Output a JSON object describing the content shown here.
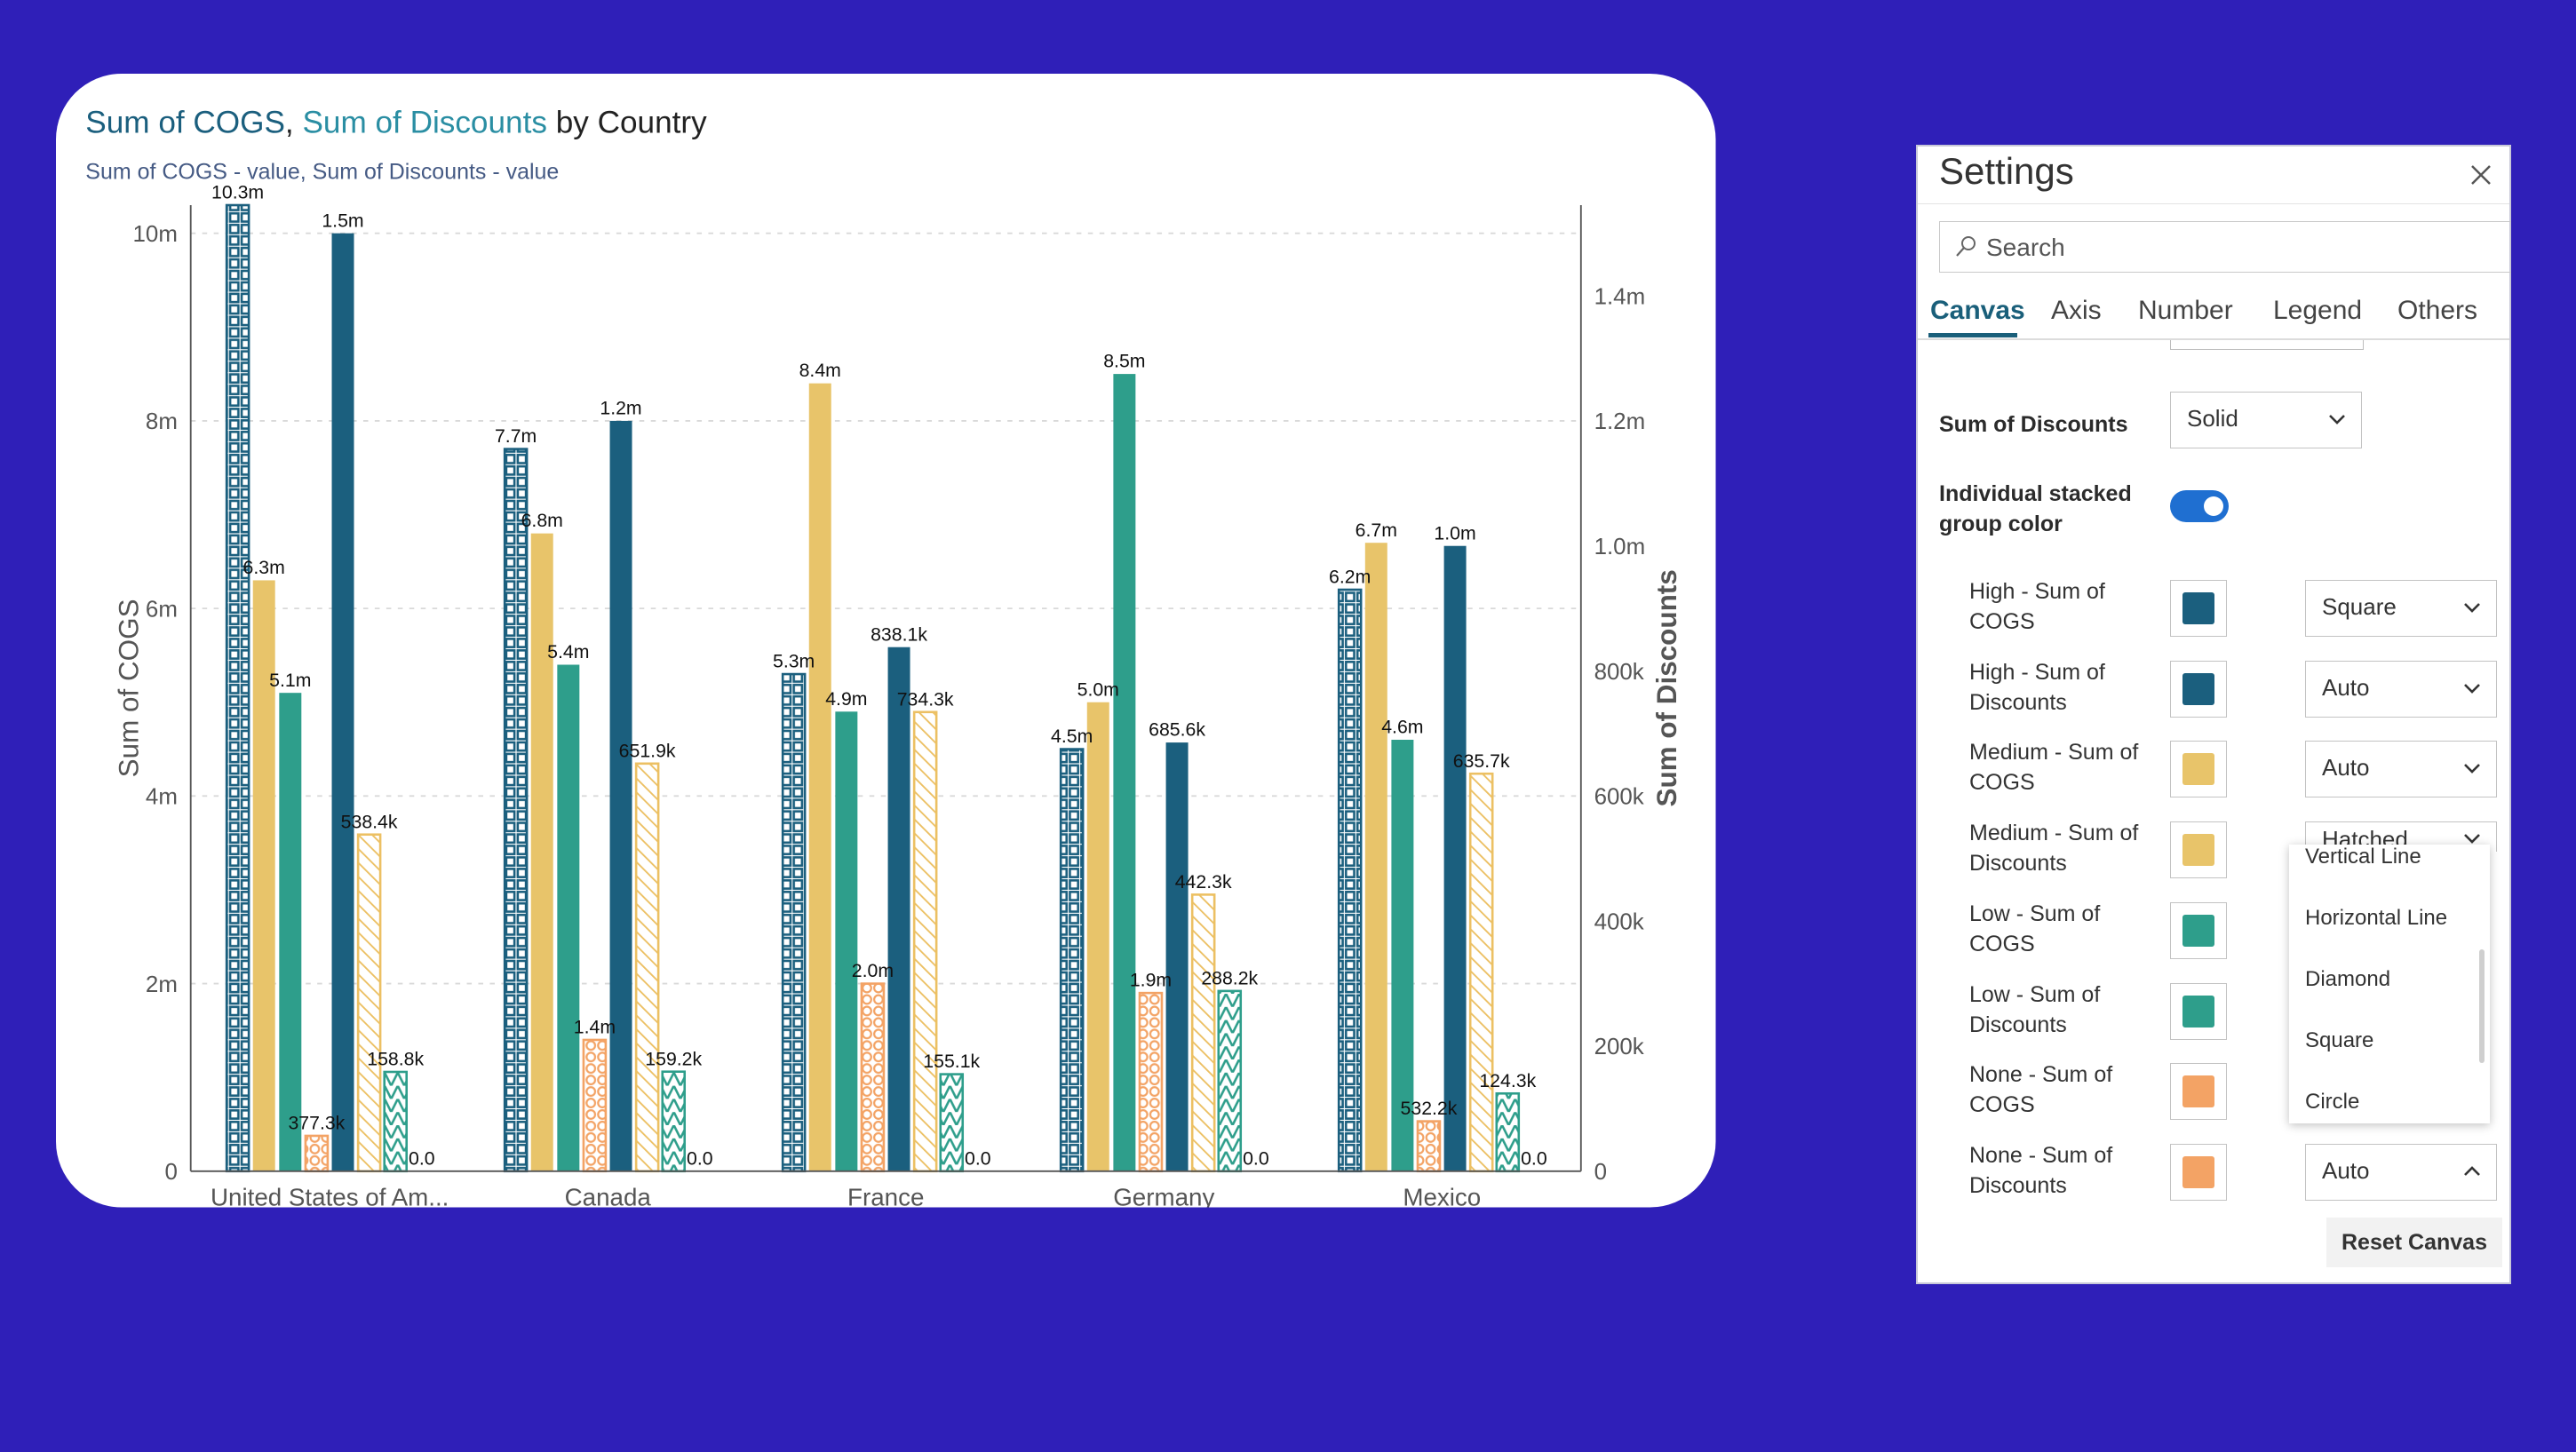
{
  "colors": {
    "high": "#1b5f7e",
    "medium": "#e8c46a",
    "low": "#2e9e8b",
    "none": "#f3a365",
    "stroke_med_hatch": "#ecc063"
  },
  "chart_data": {
    "type": "bar",
    "title_parts": [
      "Sum of COGS",
      ", ",
      "Sum of Discounts",
      " by Country"
    ],
    "subtitle": "Sum of COGS - value, Sum of Discounts - value",
    "ylabel_left": "Sum of COGS",
    "ylabel_right": "Sum of Discounts",
    "ylim_left": [
      0,
      10300000
    ],
    "ylim_right": [
      0,
      1545000
    ],
    "yticks_left": [
      {
        "v": 0,
        "label": "0"
      },
      {
        "v": 2000000,
        "label": "2m"
      },
      {
        "v": 4000000,
        "label": "4m"
      },
      {
        "v": 6000000,
        "label": "6m"
      },
      {
        "v": 8000000,
        "label": "8m"
      },
      {
        "v": 10000000,
        "label": "10m"
      }
    ],
    "yticks_right": [
      {
        "v": 0,
        "label": "0"
      },
      {
        "v": 200000,
        "label": "200k"
      },
      {
        "v": 400000,
        "label": "400k"
      },
      {
        "v": 600000,
        "label": "600k"
      },
      {
        "v": 800000,
        "label": "800k"
      },
      {
        "v": 1000000,
        "label": "1.0m"
      },
      {
        "v": 1200000,
        "label": "1.2m"
      },
      {
        "v": 1400000,
        "label": "1.4m"
      }
    ],
    "grid": true,
    "categories": [
      "United States of Am...",
      "Canada",
      "France",
      "Germany",
      "Mexico"
    ],
    "series": [
      {
        "name": "High - Sum of COGS",
        "axis": "left",
        "color": "#1b5f7e",
        "pattern": "square",
        "values": [
          10300000,
          7700000,
          5300000,
          4500000,
          6200000
        ],
        "labels": [
          "10.3m",
          "7.7m",
          "5.3m",
          "4.5m",
          "6.2m"
        ]
      },
      {
        "name": "Medium - Sum of COGS",
        "axis": "left",
        "color": "#e8c46a",
        "pattern": "solid",
        "values": [
          6300000,
          6800000,
          8400000,
          5000000,
          6700000
        ],
        "labels": [
          "6.3m",
          "6.8m",
          "8.4m",
          "5.0m",
          "6.7m"
        ]
      },
      {
        "name": "Low - Sum of COGS",
        "axis": "left",
        "color": "#2e9e8b",
        "pattern": "solid",
        "values": [
          5100000,
          5400000,
          4900000,
          8500000,
          4600000
        ],
        "labels": [
          "5.1m",
          "5.4m",
          "4.9m",
          "8.5m",
          "4.6m"
        ]
      },
      {
        "name": "None - Sum of COGS",
        "axis": "left",
        "color": "#f3a365",
        "pattern": "circle",
        "values": [
          377300,
          1400000,
          2000000,
          1900000,
          532200
        ],
        "labels": [
          "377.3k",
          "1.4m",
          "2.0m",
          "1.9m",
          "532.2k"
        ]
      },
      {
        "name": "High - Sum of Discounts",
        "axis": "right",
        "color": "#1b5f7e",
        "pattern": "solid",
        "values": [
          1500000,
          1200000,
          838100,
          685600,
          1000000
        ],
        "labels": [
          "1.5m",
          "1.2m",
          "838.1k",
          "685.6k",
          "1.0m"
        ]
      },
      {
        "name": "Medium - Sum of Discounts",
        "axis": "right",
        "color": "#ecc063",
        "pattern": "hatched",
        "values": [
          538400,
          651900,
          734300,
          442300,
          635700
        ],
        "labels": [
          "538.4k",
          "651.9k",
          "734.3k",
          "442.3k",
          "635.7k"
        ]
      },
      {
        "name": "Low - Sum of Discounts",
        "axis": "right",
        "color": "#2e9e8b",
        "pattern": "zigzag",
        "values": [
          158800,
          159200,
          155100,
          288200,
          124300
        ],
        "labels": [
          "158.8k",
          "159.2k",
          "155.1k",
          "288.2k",
          "124.3k"
        ]
      },
      {
        "name": "None - Sum of Discounts",
        "axis": "right",
        "color": "#f3a365",
        "pattern": "solid",
        "values": [
          0,
          0,
          0,
          0,
          0
        ],
        "labels": [
          "0.0",
          "0.0",
          "0.0",
          "0.0",
          "0.0"
        ]
      }
    ]
  },
  "settings": {
    "title": "Settings",
    "close_icon": "close-icon",
    "search_placeholder": "Search",
    "tabs": [
      "Canvas",
      "Axis",
      "Number",
      "Legend",
      "Others"
    ],
    "active_tab": "Canvas",
    "sum_of_discounts_label": "Sum of Discounts",
    "sum_of_discounts_value": "Solid",
    "individual_label_1": "Individual stacked",
    "individual_label_2": "group color",
    "individual_on": true,
    "rows": [
      {
        "l1": "High - Sum of",
        "l2": "COGS",
        "color": "#1b5f7e",
        "style": "Square"
      },
      {
        "l1": "High - Sum of",
        "l2": "Discounts",
        "color": "#1b5f7e",
        "style": "Auto"
      },
      {
        "l1": "Medium - Sum of",
        "l2": "COGS",
        "color": "#e8c46a",
        "style": "Auto"
      },
      {
        "l1": "Medium - Sum of",
        "l2": "Discounts",
        "color": "#e8c46a",
        "style": "Hatched"
      },
      {
        "l1": "Low - Sum of",
        "l2": "COGS",
        "color": "#2e9e8b",
        "style": ""
      },
      {
        "l1": "Low - Sum of",
        "l2": "Discounts",
        "color": "#2e9e8b",
        "style": ""
      },
      {
        "l1": "None - Sum of",
        "l2": "COGS",
        "color": "#f3a365",
        "style": ""
      },
      {
        "l1": "None - Sum of",
        "l2": "Discounts",
        "color": "#f3a365",
        "style": "Auto"
      }
    ],
    "menu_options": [
      "Vertical Line",
      "Horizontal Line",
      "Diamond",
      "Square",
      "Circle"
    ],
    "reset_label": "Reset Canvas"
  }
}
